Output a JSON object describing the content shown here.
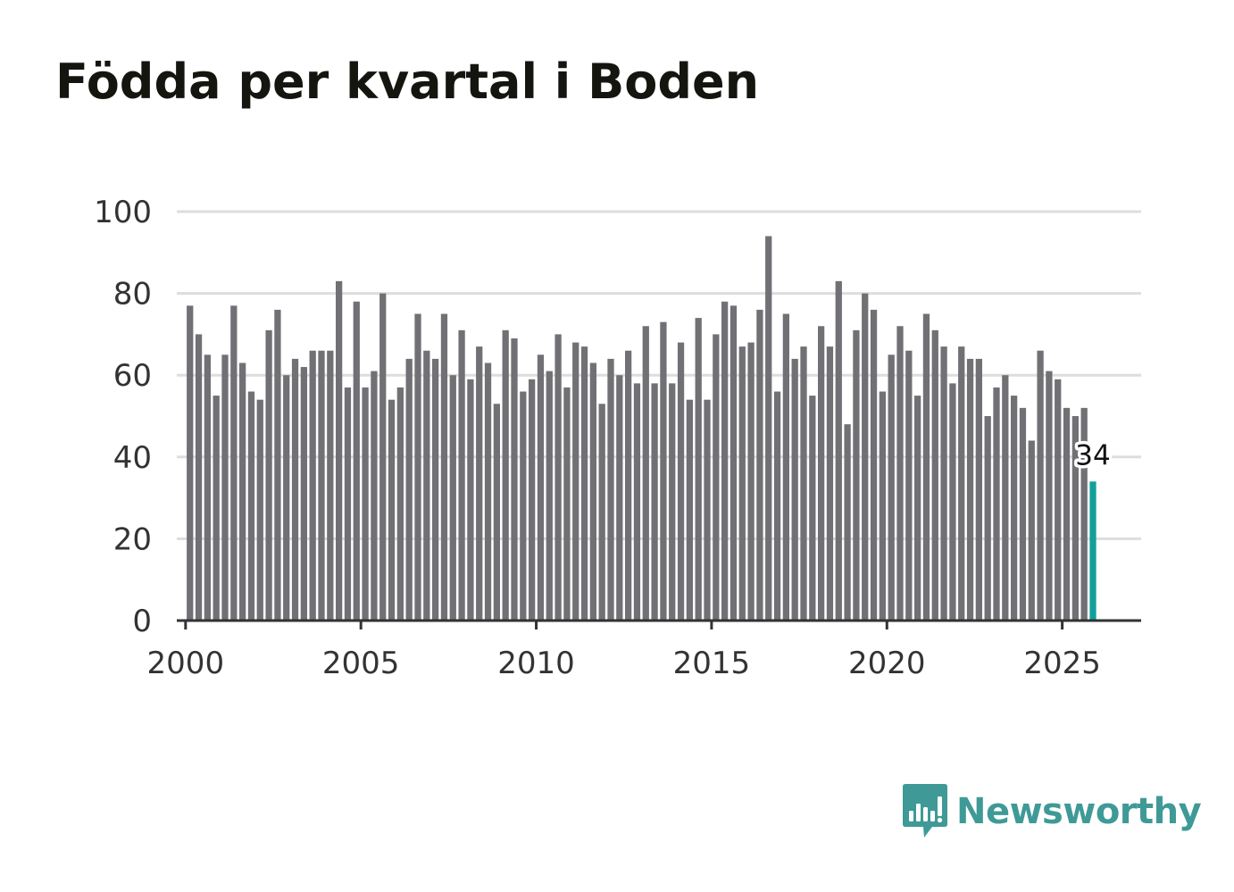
{
  "title": "Födda per kvartal i Boden",
  "brand": {
    "name": "Newsworthy",
    "color": "#3f9a97"
  },
  "colors": {
    "bar": "#717074",
    "highlight": "#13a09a",
    "grid": "#dddddd",
    "axis": "#333333"
  },
  "chart_data": {
    "type": "bar",
    "title": "Födda per kvartal i Boden",
    "xlabel": "",
    "ylabel": "",
    "ylim": [
      0,
      100
    ],
    "yticks": [
      0,
      20,
      40,
      60,
      80,
      100
    ],
    "xticks": [
      2000,
      2005,
      2010,
      2015,
      2020,
      2025
    ],
    "xlim": [
      1999.75,
      2027.25
    ],
    "grid": true,
    "start_year": 2000,
    "periods_per_year": 4,
    "values": [
      77,
      70,
      65,
      55,
      65,
      77,
      63,
      56,
      54,
      71,
      76,
      60,
      64,
      62,
      66,
      66,
      66,
      83,
      57,
      78,
      57,
      61,
      80,
      54,
      57,
      64,
      75,
      66,
      64,
      75,
      60,
      71,
      59,
      67,
      63,
      53,
      71,
      69,
      56,
      59,
      65,
      61,
      70,
      57,
      68,
      67,
      63,
      53,
      64,
      60,
      66,
      58,
      72,
      58,
      73,
      58,
      68,
      54,
      74,
      54,
      70,
      78,
      77,
      67,
      68,
      76,
      94,
      56,
      75,
      64,
      67,
      55,
      72,
      67,
      83,
      48,
      71,
      80,
      76,
      56,
      65,
      72,
      66,
      55,
      75,
      71,
      67,
      58,
      67,
      64,
      64,
      50,
      57,
      60,
      55,
      52,
      44,
      66,
      61,
      59,
      52,
      50,
      52,
      34
    ],
    "highlight_last": true,
    "last_value_label": "34"
  }
}
